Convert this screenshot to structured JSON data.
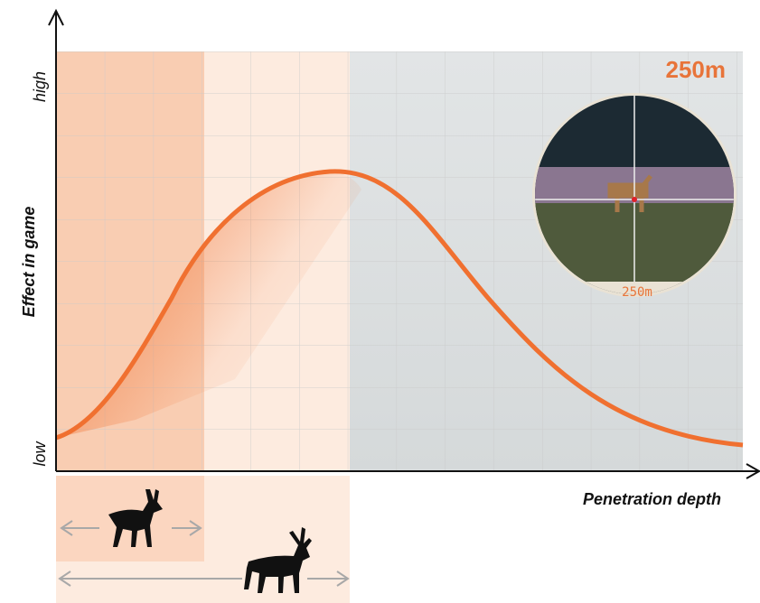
{
  "y_axis": {
    "label": "Effect in game",
    "high": "high",
    "low": "low"
  },
  "x_axis": {
    "label": "Penetration depth"
  },
  "distance": {
    "label": "250m"
  },
  "scope": {
    "readout": "250m"
  }
}
